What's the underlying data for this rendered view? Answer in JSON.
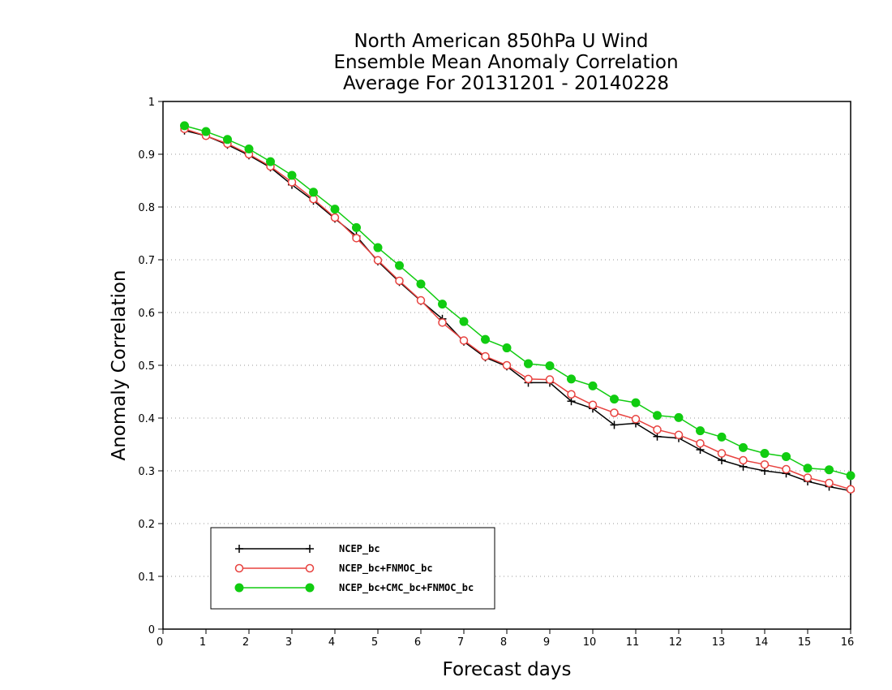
{
  "chart_data": {
    "type": "line",
    "title": [
      "North American 850hPa U Wind",
      "Ensemble Mean Anomaly Correlation",
      "Average For 20131201 - 20140228"
    ],
    "xlabel": "Forecast days",
    "ylabel": "Anomaly Correlation",
    "xlim": [
      0,
      16
    ],
    "ylim": [
      0,
      1
    ],
    "xticks": [
      "0",
      "1",
      "2",
      "3",
      "4",
      "5",
      "6",
      "7",
      "8",
      "9",
      "10",
      "11",
      "12",
      "13",
      "14",
      "15",
      "16"
    ],
    "yticks": [
      "0",
      "0.1",
      "0.2",
      "0.3",
      "0.4",
      "0.5",
      "0.6",
      "0.7",
      "0.8",
      "0.9",
      "1"
    ],
    "grid": "horizontal-dotted",
    "legend_position": "bottom-left",
    "x": [
      0.5,
      1,
      1.5,
      2,
      2.5,
      3,
      3.5,
      4,
      4.5,
      5,
      5.5,
      6,
      6.5,
      7,
      7.5,
      8,
      8.5,
      9,
      9.5,
      10,
      10.5,
      11,
      11.5,
      12,
      12.5,
      13,
      13.5,
      14,
      14.5,
      15,
      15.5,
      16
    ],
    "series": [
      {
        "name": "NCEP_bc",
        "color": "#000000",
        "marker": "plus",
        "values": [
          0.945,
          0.935,
          0.918,
          0.898,
          0.875,
          0.842,
          0.812,
          0.778,
          0.745,
          0.697,
          0.658,
          0.622,
          0.588,
          0.545,
          0.515,
          0.498,
          0.467,
          0.467,
          0.432,
          0.418,
          0.387,
          0.39,
          0.365,
          0.362,
          0.34,
          0.32,
          0.308,
          0.3,
          0.295,
          0.28,
          0.27,
          0.262
        ]
      },
      {
        "name": "NCEP_bc+FNMOC_bc",
        "color": "#e8423f",
        "marker": "open-circle",
        "values": [
          0.948,
          0.935,
          0.92,
          0.9,
          0.877,
          0.847,
          0.815,
          0.78,
          0.741,
          0.699,
          0.66,
          0.623,
          0.581,
          0.547,
          0.517,
          0.5,
          0.474,
          0.473,
          0.445,
          0.425,
          0.41,
          0.398,
          0.378,
          0.368,
          0.352,
          0.333,
          0.32,
          0.312,
          0.303,
          0.287,
          0.277,
          0.265
        ]
      },
      {
        "name": "NCEP_bc+CMC_bc+FNMOC_bc",
        "color": "#11cc11",
        "marker": "filled-circle",
        "values": [
          0.954,
          0.943,
          0.928,
          0.91,
          0.886,
          0.86,
          0.828,
          0.796,
          0.761,
          0.723,
          0.689,
          0.654,
          0.616,
          0.583,
          0.549,
          0.533,
          0.503,
          0.499,
          0.474,
          0.461,
          0.436,
          0.429,
          0.405,
          0.401,
          0.376,
          0.364,
          0.344,
          0.333,
          0.327,
          0.305,
          0.302,
          0.291
        ]
      }
    ]
  }
}
